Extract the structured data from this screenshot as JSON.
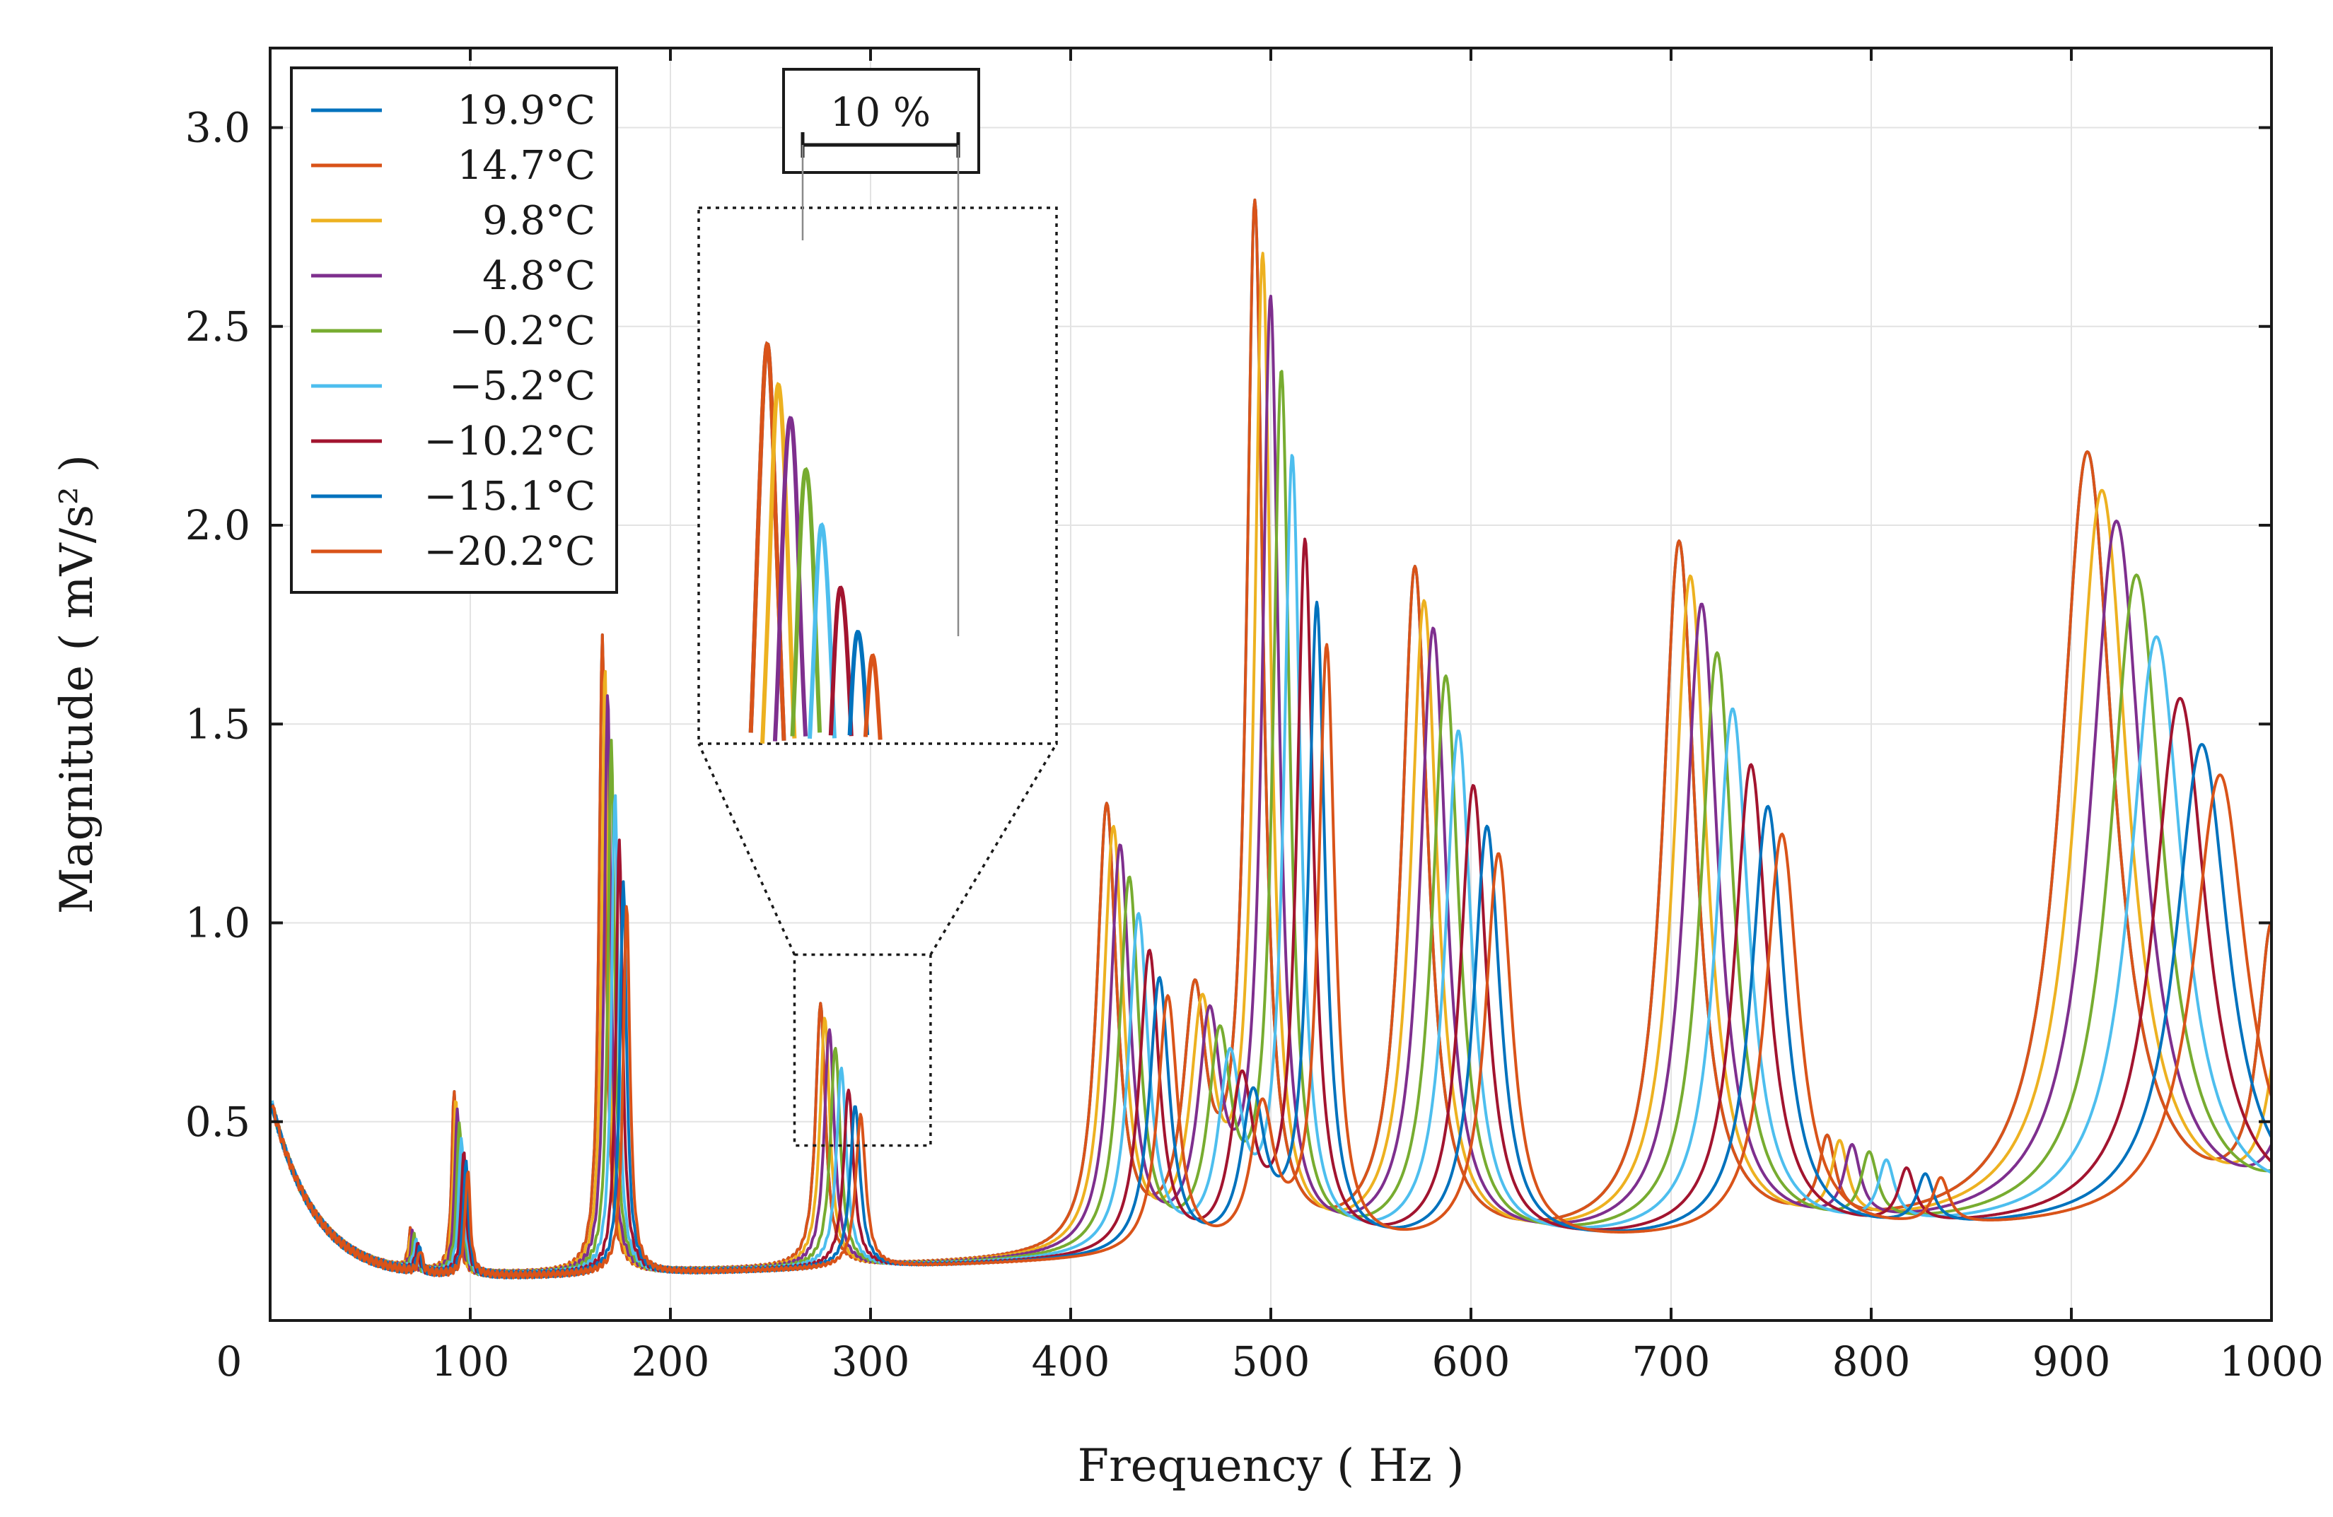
{
  "chart_data": {
    "type": "line",
    "xlabel": "Frequency ( Hz )",
    "ylabel": "Magnitude ( mV/s² )",
    "xlim": [
      0,
      1000
    ],
    "ylim": [
      0,
      3.2
    ],
    "x_ticks": [
      {
        "value": 0,
        "label": "0"
      },
      {
        "value": 100,
        "label": "100"
      },
      {
        "value": 200,
        "label": "200"
      },
      {
        "value": 300,
        "label": "300"
      },
      {
        "value": 400,
        "label": "400"
      },
      {
        "value": 500,
        "label": "500"
      },
      {
        "value": 600,
        "label": "600"
      },
      {
        "value": 700,
        "label": "700"
      },
      {
        "value": 800,
        "label": "800"
      },
      {
        "value": 900,
        "label": "900"
      },
      {
        "value": 1000,
        "label": "1000"
      }
    ],
    "y_ticks": [
      {
        "value": 0.5,
        "label": "0.5"
      },
      {
        "value": 1.0,
        "label": "1.0"
      },
      {
        "value": 1.5,
        "label": "1.5"
      },
      {
        "value": 2.0,
        "label": "2.0"
      },
      {
        "value": 2.5,
        "label": "2.5"
      },
      {
        "value": 3.0,
        "label": "3.0"
      }
    ],
    "grid": true,
    "legend_position": "top-left",
    "base_peaks": [
      {
        "f": 92,
        "a": 0.46,
        "w": 1.5
      },
      {
        "f": 70,
        "a": 0.1,
        "w": 1.2
      },
      {
        "f": 166,
        "a": 1.6,
        "w": 2.0
      },
      {
        "f": 275,
        "a": 0.66,
        "w": 3.0
      },
      {
        "f": 418,
        "a": 1.12,
        "w": 6.0
      },
      {
        "f": 462,
        "a": 0.6,
        "w": 7.0
      },
      {
        "f": 492,
        "a": 2.6,
        "w": 5.0
      },
      {
        "f": 572,
        "a": 1.7,
        "w": 8.0
      },
      {
        "f": 704,
        "a": 1.75,
        "w": 10.0
      },
      {
        "f": 778,
        "a": 0.2,
        "w": 5.0
      },
      {
        "f": 908,
        "a": 1.95,
        "w": 16.0
      },
      {
        "f": 1000,
        "a": 0.7,
        "w": 8.0
      }
    ],
    "series": [
      {
        "name": "19.9°C",
        "label": "19.9°C",
        "color": "#0072BD",
        "shift": 0.0,
        "amp": 1.0
      },
      {
        "name": "14.7°C",
        "label": "14.7°C",
        "color": "#D95319",
        "shift": 0.0,
        "amp": 1.0
      },
      {
        "name": "9.8°C",
        "label": "9.8°C",
        "color": "#EDB120",
        "shift": 0.008,
        "amp": 0.95
      },
      {
        "name": "4.8°C",
        "label": "4.8°C",
        "color": "#7E2F8E",
        "shift": 0.016,
        "amp": 0.91
      },
      {
        "name": "-0.2°C",
        "label": "−0.2°C",
        "color": "#77AC30",
        "shift": 0.027,
        "amp": 0.84
      },
      {
        "name": "-5.2°C",
        "label": "−5.2°C",
        "color": "#4DBEEE",
        "shift": 0.038,
        "amp": 0.76
      },
      {
        "name": "-10.2°C",
        "label": "−10.2°C",
        "color": "#A2142F",
        "shift": 0.051,
        "amp": 0.68
      },
      {
        "name": "-15.1°C",
        "label": "−15.1°C",
        "color": "#0072BD",
        "shift": 0.063,
        "amp": 0.62
      },
      {
        "name": "-20.2°C",
        "label": "−20.2°C",
        "color": "#D95319",
        "shift": 0.073,
        "amp": 0.58
      }
    ],
    "annotations": {
      "inset_x_range": [
        262,
        330
      ],
      "inset_y_range": [
        0.44,
        0.92
      ],
      "scale_bar_label": "10 %"
    }
  }
}
